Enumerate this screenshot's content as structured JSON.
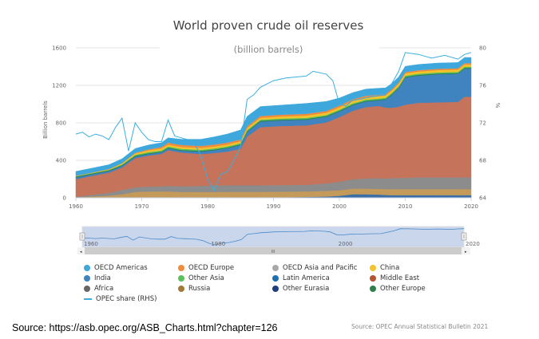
{
  "chart_data": {
    "type": "area",
    "title": "World proven crude oil reserves",
    "subtitle": "(billion barrels)",
    "ylabel": "Billion barrels",
    "y2label": "%",
    "ylim": [
      0,
      1600
    ],
    "y2lim": [
      64,
      80
    ],
    "yticks": [
      "0",
      "400",
      "800",
      "1200",
      "1600"
    ],
    "y2ticks": [
      "64",
      "68",
      "72",
      "76",
      "80"
    ],
    "xticks": [
      "1960",
      "1970",
      "1980",
      "1990",
      "2000",
      "2010",
      "2020"
    ],
    "x": [
      1960,
      1962,
      1965,
      1967,
      1969,
      1971,
      1973,
      1974,
      1976,
      1979,
      1981,
      1983,
      1985,
      1986,
      1988,
      1991,
      1995,
      1998,
      2000,
      2002,
      2004,
      2006,
      2007,
      2008,
      2009,
      2010,
      2012,
      2015,
      2018,
      2019,
      2020
    ],
    "series": [
      {
        "name": "Other Eurasia",
        "color": "#1f3f7a",
        "values": [
          1,
          1,
          1,
          1,
          1,
          1,
          1,
          1,
          1,
          1,
          1,
          1,
          1,
          1,
          1,
          1,
          1,
          2,
          3,
          3,
          3,
          3,
          3,
          3,
          3,
          3,
          3,
          3,
          3,
          3,
          3
        ]
      },
      {
        "name": "Latin America",
        "color": "#3a6ea5",
        "values": [
          2,
          2,
          2,
          2,
          2,
          2,
          2,
          2,
          2,
          2,
          2,
          3,
          3,
          3,
          3,
          5,
          8,
          12,
          18,
          35,
          35,
          32,
          28,
          26,
          26,
          26,
          26,
          26,
          26,
          26,
          26
        ]
      },
      {
        "name": "Russia",
        "color": "#c39a5a",
        "values": [
          5,
          10,
          20,
          35,
          60,
          65,
          65,
          65,
          60,
          60,
          60,
          60,
          60,
          60,
          60,
          60,
          60,
          60,
          60,
          60,
          60,
          60,
          62,
          65,
          65,
          65,
          65,
          65,
          65,
          65,
          65
        ]
      },
      {
        "name": "Africa",
        "color": "#8c8c8c",
        "values": [
          5,
          15,
          30,
          45,
          50,
          52,
          55,
          60,
          60,
          65,
          70,
          70,
          70,
          70,
          70,
          70,
          70,
          80,
          90,
          100,
          110,
          115,
          115,
          118,
          118,
          120,
          125,
          125,
          125,
          125,
          125
        ]
      },
      {
        "name": "Middle East",
        "color": "#c5735a",
        "values": [
          185,
          200,
          215,
          240,
          310,
          330,
          345,
          380,
          360,
          340,
          345,
          360,
          390,
          520,
          620,
          630,
          635,
          650,
          690,
          730,
          760,
          770,
          755,
          750,
          760,
          780,
          795,
          800,
          805,
          860,
          860
        ]
      },
      {
        "name": "India",
        "color": "#3f84bf",
        "values": [
          20,
          18,
          18,
          18,
          18,
          18,
          18,
          20,
          20,
          25,
          30,
          35,
          40,
          50,
          60,
          60,
          60,
          60,
          60,
          60,
          60,
          60,
          85,
          140,
          200,
          290,
          290,
          300,
          300,
          300,
          300
        ]
      },
      {
        "name": "Other Europe",
        "color": "#2e7d4a",
        "values": [
          8,
          8,
          8,
          8,
          8,
          8,
          8,
          8,
          8,
          8,
          8,
          8,
          8,
          8,
          8,
          8,
          8,
          8,
          8,
          8,
          8,
          8,
          8,
          8,
          8,
          8,
          8,
          8,
          8,
          8,
          8
        ]
      },
      {
        "name": "Other Asia",
        "color": "#5bbf5b",
        "values": [
          5,
          5,
          5,
          8,
          10,
          12,
          12,
          12,
          12,
          12,
          12,
          12,
          12,
          12,
          12,
          12,
          12,
          12,
          12,
          12,
          12,
          12,
          12,
          12,
          12,
          12,
          12,
          12,
          12,
          12,
          12
        ]
      },
      {
        "name": "China",
        "color": "#f4c22a",
        "values": [
          2,
          2,
          5,
          10,
          15,
          18,
          20,
          20,
          20,
          20,
          20,
          20,
          20,
          20,
          20,
          22,
          24,
          24,
          24,
          24,
          24,
          24,
          24,
          24,
          24,
          24,
          24,
          24,
          24,
          24,
          24
        ]
      },
      {
        "name": "OECD Europe",
        "color": "#f08a3c",
        "values": [
          2,
          2,
          2,
          2,
          5,
          10,
          15,
          20,
          20,
          20,
          20,
          20,
          18,
          18,
          18,
          18,
          18,
          18,
          18,
          18,
          16,
          15,
          14,
          14,
          13,
          13,
          13,
          13,
          13,
          13,
          13
        ]
      },
      {
        "name": "OECD Asia and Pacific",
        "color": "#a8a8a8",
        "values": [
          2,
          2,
          2,
          2,
          2,
          2,
          2,
          2,
          2,
          2,
          2,
          2,
          2,
          2,
          2,
          2,
          2,
          2,
          2,
          2,
          2,
          2,
          2,
          2,
          2,
          2,
          2,
          2,
          2,
          2,
          2
        ]
      },
      {
        "name": "OECD Americas",
        "color": "#3ea8dc",
        "values": [
          45,
          45,
          45,
          45,
          45,
          45,
          45,
          50,
          60,
          70,
          80,
          90,
          100,
          105,
          100,
          100,
          110,
          100,
          80,
          70,
          70,
          68,
          65,
          60,
          60,
          60,
          60,
          60,
          60,
          60,
          60
        ]
      }
    ],
    "line_series": {
      "name": "OPEC share (RHS)",
      "color": "#3aaee0",
      "x": [
        1960,
        1961,
        1962,
        1963,
        1964,
        1965,
        1966,
        1967,
        1968,
        1969,
        1970,
        1971,
        1972,
        1973,
        1974,
        1975,
        1976,
        1977,
        1978,
        1979,
        1980,
        1981,
        1982,
        1983,
        1984,
        1985,
        1986,
        1987,
        1988,
        1990,
        1992,
        1995,
        1996,
        1998,
        1999,
        2000,
        2001,
        2002,
        2003,
        2005,
        2007,
        2009,
        2010,
        2012,
        2014,
        2016,
        2018,
        2019,
        2020
      ],
      "values": [
        70.8,
        71.0,
        70.5,
        70.8,
        70.6,
        70.2,
        71.5,
        72.5,
        69.0,
        72.0,
        71.0,
        70.2,
        70.0,
        70.0,
        72.3,
        70.6,
        70.4,
        70.2,
        69.8,
        68.5,
        66.0,
        64.8,
        66.5,
        66.8,
        68.0,
        69.5,
        74.5,
        75.0,
        75.8,
        76.5,
        76.8,
        77.0,
        77.5,
        77.2,
        76.5,
        74.0,
        73.8,
        74.4,
        74.5,
        74.8,
        75.0,
        77.5,
        79.5,
        79.3,
        78.9,
        79.2,
        78.8,
        79.3,
        79.5
      ]
    },
    "navigator": {
      "labels": [
        "1960",
        "1980",
        "2000",
        "2020"
      ],
      "scroll_grip": "III"
    },
    "legend_position": "bottom",
    "grid": true
  },
  "legend": {
    "items": [
      {
        "label": "OECD Americas",
        "color": "#3ea8dc",
        "kind": "dot"
      },
      {
        "label": "OECD Europe",
        "color": "#f08a3c",
        "kind": "dot"
      },
      {
        "label": "OECD Asia and Pacific",
        "color": "#a8a8a8",
        "kind": "dot"
      },
      {
        "label": "China",
        "color": "#f4c22a",
        "kind": "dot"
      },
      {
        "label": "India",
        "color": "#3f84bf",
        "kind": "dot"
      },
      {
        "label": "Other Asia",
        "color": "#5bbf5b",
        "kind": "dot"
      },
      {
        "label": "Latin America",
        "color": "#1f6fae",
        "kind": "dot"
      },
      {
        "label": "Middle East",
        "color": "#b5532e",
        "kind": "dot"
      },
      {
        "label": "Africa",
        "color": "#666666",
        "kind": "dot"
      },
      {
        "label": "Russia",
        "color": "#a27a3a",
        "kind": "dot"
      },
      {
        "label": "Other Eurasia",
        "color": "#1f3f7a",
        "kind": "dot"
      },
      {
        "label": "Other Europe",
        "color": "#2e7d4a",
        "kind": "dot"
      },
      {
        "label": "OPEC share (RHS)",
        "color": "#3aaee0",
        "kind": "line"
      }
    ]
  },
  "footer": {
    "source_url": "Source: https://asb.opec.org/ASB_Charts.html?chapter=126",
    "source_note": "Source: OPEC Annual Statistical Bulletin 2021"
  }
}
